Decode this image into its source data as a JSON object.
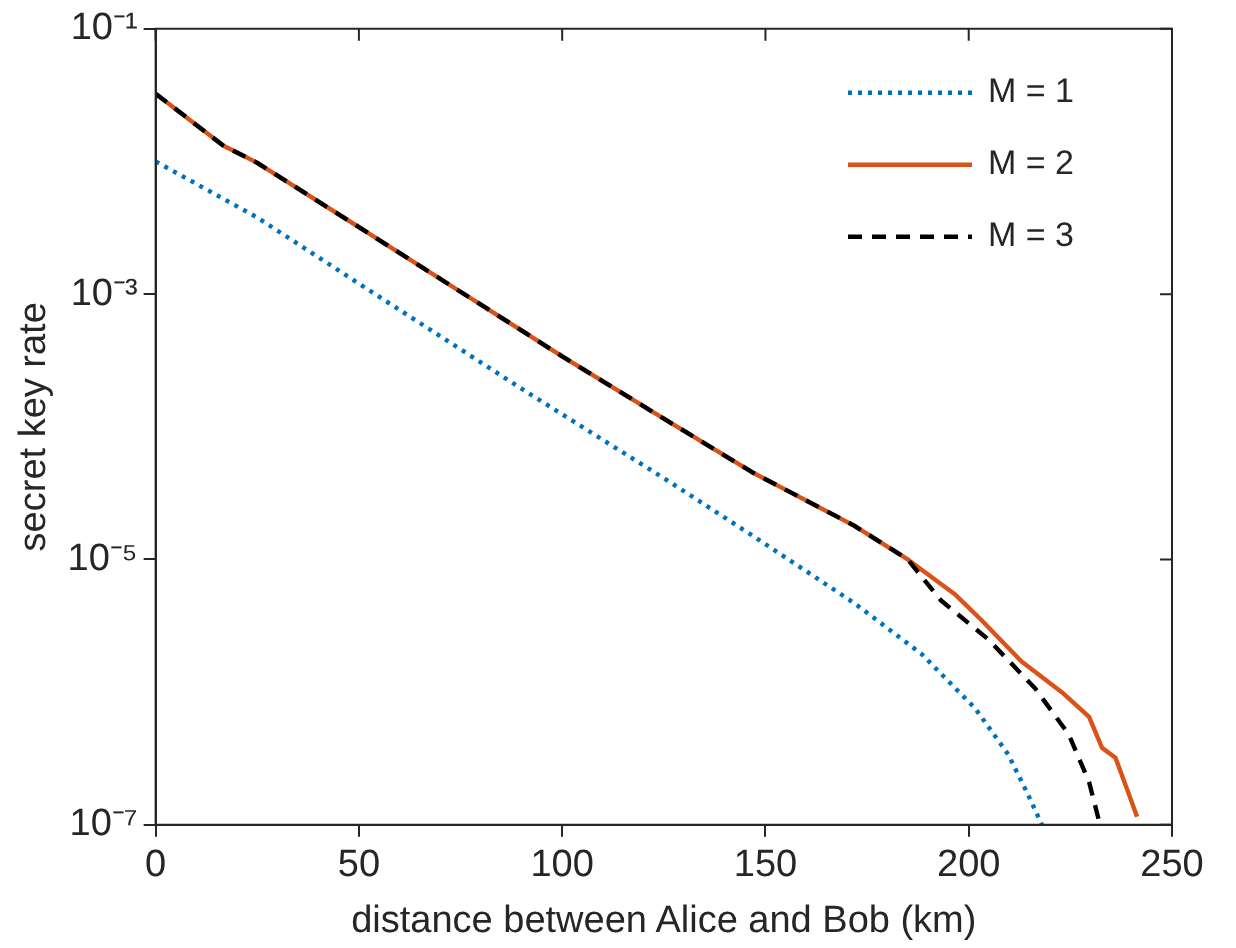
{
  "chart_data": {
    "type": "line",
    "xlabel": "distance between Alice and Bob (km)",
    "ylabel": "secret key rate",
    "log": "y",
    "grid": false,
    "legend": "top right",
    "marker": "none",
    "xlim": [
      0,
      250
    ],
    "xticks": [
      0,
      50,
      100,
      150,
      200,
      250
    ],
    "ylim": [
      1e-07,
      0.1
    ],
    "yticks": [
      {
        "value": 0.1,
        "label": "10⁻¹"
      },
      {
        "value": 0.001,
        "label": "10⁻³"
      },
      {
        "value": 1e-05,
        "label": "10⁻⁵"
      },
      {
        "value": 1e-07,
        "label": "10⁻⁷"
      }
    ],
    "series": [
      {
        "name": "M = 1",
        "color": "#0072bd",
        "line_style": "dotted",
        "x": [
          0,
          24.9,
          50,
          90.9,
          125,
          147,
          171.8,
          188.3,
          201.5,
          209.7,
          214.7,
          218
        ],
        "values": [
          0.01,
          0.0038,
          0.0012,
          0.000186,
          4.1e-05,
          1.5e-05,
          4.7e-06,
          1.95e-06,
          7.6e-07,
          3.4e-07,
          1.66e-07,
          1e-07
        ]
      },
      {
        "name": "M = 2",
        "color": "#d95319",
        "line_style": "solid",
        "x": [
          0,
          16.6,
          24.9,
          50,
          74.4,
          100,
          125,
          147,
          171.8,
          185,
          196.5,
          203.1,
          213,
          222.9,
          229.6,
          232.8,
          236.1,
          239.4,
          241.4
        ],
        "values": [
          0.0324,
          0.0132,
          0.0098,
          0.0032,
          0.00107,
          0.00034,
          0.000115,
          4.5e-05,
          1.8e-05,
          1e-05,
          5.5e-06,
          3.5e-06,
          1.7e-06,
          1e-06,
          6.5e-07,
          3.8e-07,
          3.2e-07,
          1.7e-07,
          1.15e-07
        ]
      },
      {
        "name": "M = 3",
        "color": "#000000",
        "line_style": "dashed",
        "x": [
          0,
          16.6,
          24.9,
          50,
          74.4,
          100,
          125,
          147,
          171.8,
          185,
          193.2,
          204.8,
          216.3,
          224.6,
          229.6,
          232.3
        ],
        "values": [
          0.0324,
          0.0132,
          0.0098,
          0.0032,
          0.00107,
          0.00034,
          0.000115,
          4.5e-05,
          1.8e-05,
          1e-05,
          4.9e-06,
          2.5e-06,
          1.07e-06,
          4.8e-07,
          2.1e-07,
          1e-07
        ]
      }
    ]
  }
}
